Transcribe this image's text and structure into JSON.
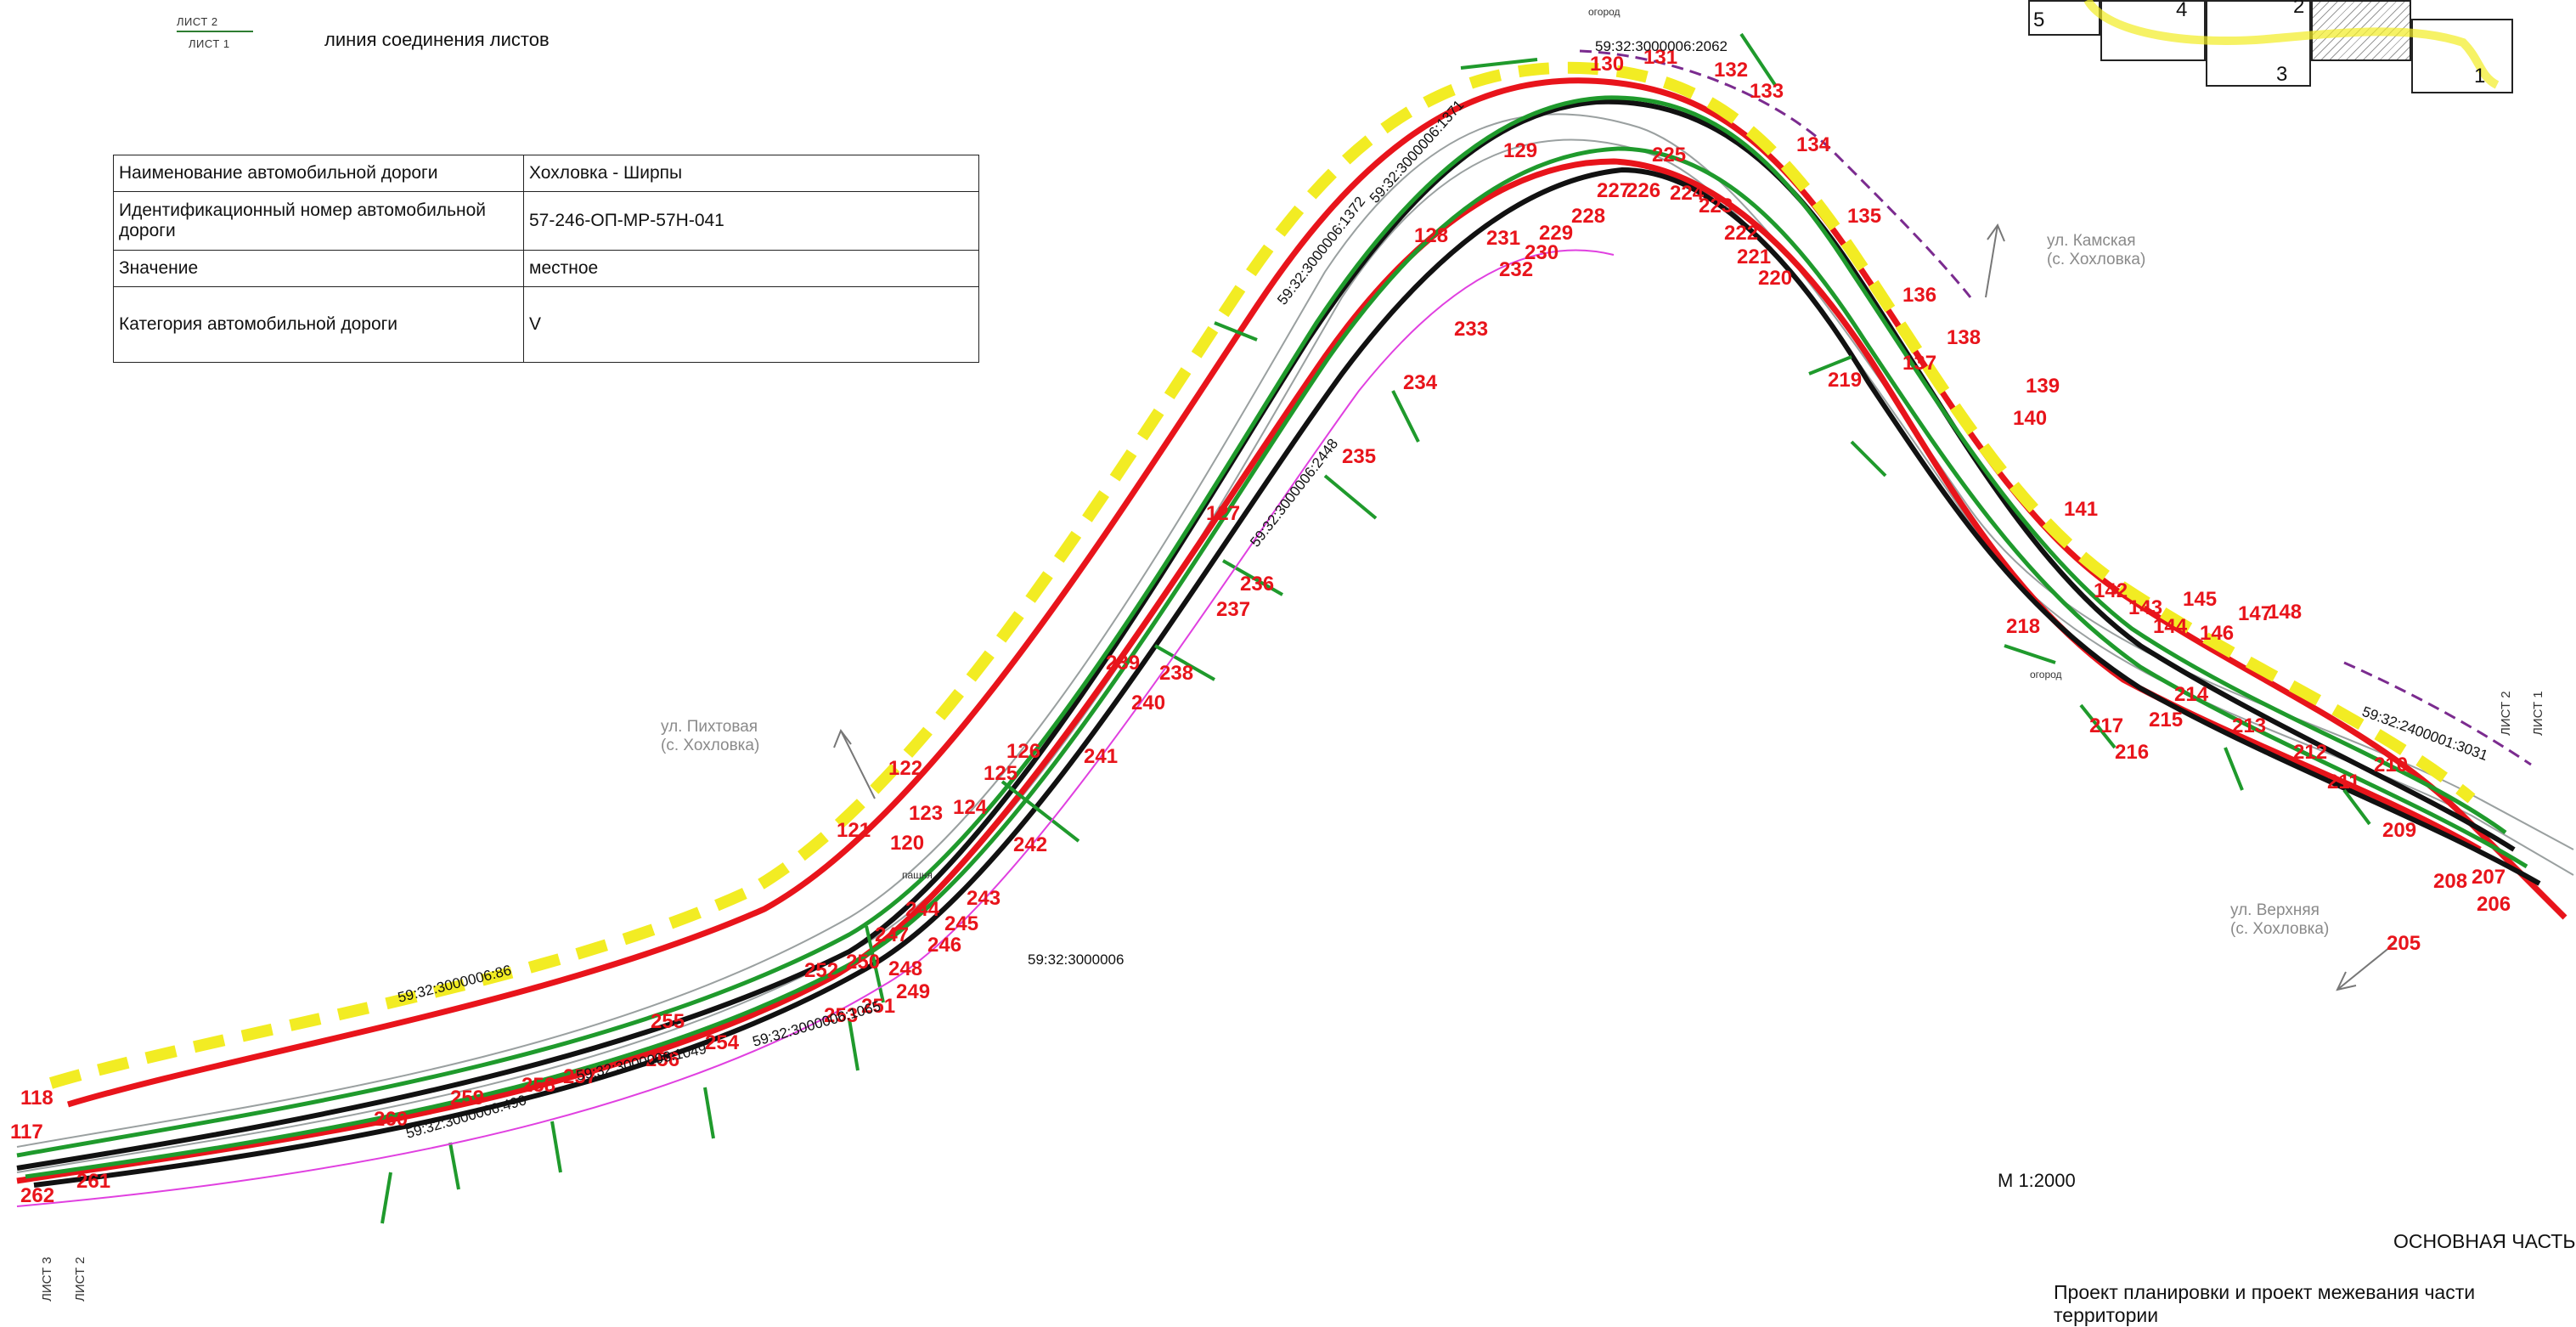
{
  "legend": {
    "sheet_top": "ЛИСТ 2",
    "sheet_bottom": "ЛИСТ 1",
    "description": "линия соединения листов"
  },
  "road_info": {
    "rows": [
      {
        "label": "Наименование автомобильной дороги",
        "value": "Хохловка - Ширпы"
      },
      {
        "label": "Идентификационный номер автомобильной дороги",
        "value": "57-246-ОП-МР-57Н-041"
      },
      {
        "label": "Значение",
        "value": "местное"
      },
      {
        "label": "Категория автомобильной дороги",
        "value": "V"
      }
    ]
  },
  "streets": {
    "pikhtovaya": {
      "name": "ул. Пихтовая",
      "village": "(с. Хохловка)"
    },
    "kamskaya": {
      "name": "ул. Камская",
      "village": "(с. Хохловка)"
    },
    "verkhnyaya": {
      "name": "ул. Верхняя",
      "village": "(с. Хохловка)"
    }
  },
  "scale": "М 1:2000",
  "main_part": "ОСНОВНАЯ ЧАСТЬ",
  "project_title": "Проект планировки и проект межевания части территории",
  "key_map": {
    "sheets": [
      "5",
      "4",
      "2",
      "3",
      "1"
    ]
  },
  "sheet_marks": {
    "left_a": "ЛИСТ 3",
    "left_b": "ЛИСТ 2",
    "right_a": "ЛИСТ 2",
    "right_b": "ЛИСТ 1"
  },
  "cadastral": [
    "59:32:3000006:86",
    "59:32:3000006:2062",
    "59:32:3000006:1371",
    "59:32:3000006:1372",
    "59:32:3000006:1049",
    "59:32:3000006:1065",
    "59:32:3000006:490",
    "59:32:3000006",
    "59:32:2400001:3031",
    "59:32:3000006:2448"
  ],
  "point_labels": [
    "118",
    "117",
    "120",
    "121",
    "122",
    "123",
    "124",
    "125",
    "126",
    "127",
    "128",
    "129",
    "130",
    "131",
    "132",
    "133",
    "134",
    "135",
    "136",
    "137",
    "138",
    "139",
    "140",
    "141",
    "142",
    "143",
    "144",
    "145",
    "146",
    "147",
    "148",
    "205",
    "206",
    "207",
    "208",
    "209",
    "210",
    "211",
    "212",
    "213",
    "214",
    "215",
    "216",
    "217",
    "218",
    "219",
    "220",
    "221",
    "222",
    "223",
    "224",
    "225",
    "226",
    "227",
    "228",
    "229",
    "230",
    "231",
    "232",
    "233",
    "234",
    "235",
    "236",
    "237",
    "238",
    "239",
    "240",
    "241",
    "242",
    "243",
    "244",
    "245",
    "246",
    "247",
    "248",
    "249",
    "250",
    "251",
    "252",
    "253",
    "254",
    "255",
    "256",
    "257",
    "258",
    "259",
    "260",
    "261",
    "262"
  ],
  "map_words": {
    "ogorod": "огород",
    "pashnya": "пашня"
  },
  "colors": {
    "boundary_red": "#e8141b",
    "line_black": "#111111",
    "line_green": "#1f9a2c",
    "dash_yellow": "#f2ec23",
    "label_red": "#e8141b",
    "dash_purple": "#7b2b8f",
    "pink": "#e040e0"
  }
}
